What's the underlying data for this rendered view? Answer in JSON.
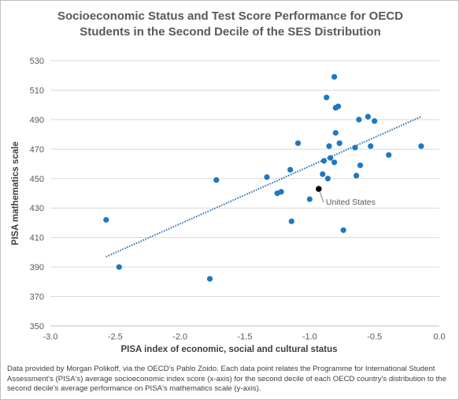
{
  "chart_data": {
    "type": "scatter",
    "title_lines": [
      "Socioeconomic Status and Test Score Performance for OECD",
      "Students in the Second Decile of the SES Distribution"
    ],
    "xlabel": "PISA index of  economic, social and cultural status",
    "ylabel": "PISA mathematics scale",
    "xlim": [
      -3.0,
      0.0
    ],
    "ylim": [
      350,
      530
    ],
    "x_ticks": [
      -3.0,
      -2.5,
      -2.0,
      -1.5,
      -1.0,
      -0.5,
      0.0
    ],
    "x_tick_labels": [
      "-3.0",
      "-2.5",
      "-2.0",
      "-1.5",
      "-1.0",
      "-0.5",
      "0.0"
    ],
    "y_ticks": [
      350,
      370,
      390,
      410,
      430,
      450,
      470,
      490,
      510,
      530
    ],
    "y_tick_labels": [
      "350",
      "370",
      "390",
      "410",
      "430",
      "450",
      "470",
      "490",
      "510",
      "530"
    ],
    "grid": "horizontal",
    "points": [
      {
        "x": -2.57,
        "y": 422
      },
      {
        "x": -2.47,
        "y": 390
      },
      {
        "x": -1.77,
        "y": 382
      },
      {
        "x": -1.72,
        "y": 449
      },
      {
        "x": -1.33,
        "y": 451
      },
      {
        "x": -1.25,
        "y": 440
      },
      {
        "x": -1.22,
        "y": 441
      },
      {
        "x": -1.15,
        "y": 456
      },
      {
        "x": -1.14,
        "y": 421
      },
      {
        "x": -1.09,
        "y": 474
      },
      {
        "x": -1.0,
        "y": 436
      },
      {
        "x": -0.9,
        "y": 453
      },
      {
        "x": -0.89,
        "y": 462
      },
      {
        "x": -0.87,
        "y": 505
      },
      {
        "x": -0.86,
        "y": 450
      },
      {
        "x": -0.85,
        "y": 472
      },
      {
        "x": -0.84,
        "y": 464
      },
      {
        "x": -0.81,
        "y": 519
      },
      {
        "x": -0.81,
        "y": 461
      },
      {
        "x": -0.8,
        "y": 498
      },
      {
        "x": -0.8,
        "y": 481
      },
      {
        "x": -0.78,
        "y": 499
      },
      {
        "x": -0.77,
        "y": 474
      },
      {
        "x": -0.74,
        "y": 415
      },
      {
        "x": -0.65,
        "y": 471
      },
      {
        "x": -0.64,
        "y": 452
      },
      {
        "x": -0.62,
        "y": 490
      },
      {
        "x": -0.61,
        "y": 459
      },
      {
        "x": -0.55,
        "y": 492
      },
      {
        "x": -0.53,
        "y": 472
      },
      {
        "x": -0.5,
        "y": 489
      },
      {
        "x": -0.39,
        "y": 466
      },
      {
        "x": -0.14,
        "y": 472
      }
    ],
    "highlight": {
      "x": -0.93,
      "y": 443,
      "label": "United States"
    },
    "trendline": {
      "style": "dotted",
      "x_start": -2.57,
      "x_end": -0.14,
      "y_start": 397,
      "y_end": 492
    },
    "colors": {
      "points": "#1f77c0",
      "highlight": "#000000",
      "trendline": "#2e75b6",
      "gridline": "#d9d9d9"
    }
  },
  "footnote": "Data provided by Morgan Polikoff, via the OECD's Pablo Zoido.  Each data point relates the Programme for International Student Assessment's (PISA's) average socioeconomic index score (x-axis) for the second decile of each OECD country's distribution to the second decile's average performance on PISA's mathematics scale (y-axis)."
}
